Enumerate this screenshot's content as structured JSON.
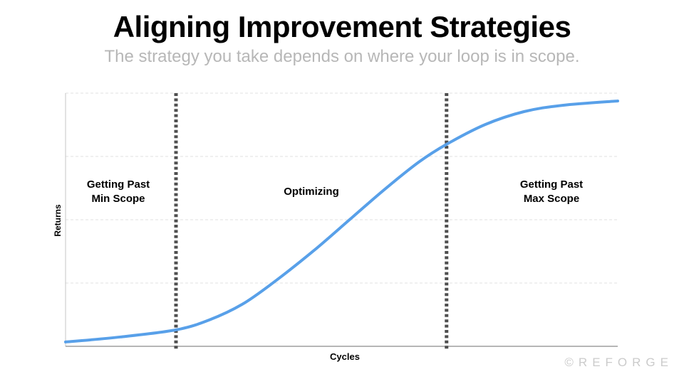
{
  "slide": {
    "title": "Aligning Improvement Strategies",
    "subtitle": "The strategy you take depends on where your loop is in scope.",
    "brand": "©REFORGE"
  },
  "chart_data": {
    "type": "line",
    "title": "Aligning Improvement Strategies",
    "xlabel": "Cycles",
    "ylabel": "Returns",
    "x": [
      0,
      10,
      20,
      26,
      32,
      38,
      45,
      52,
      58,
      64,
      69,
      76,
      83,
      90,
      100
    ],
    "y": [
      1.7,
      3.7,
      6.5,
      10.4,
      16.6,
      25.8,
      37.9,
      51.1,
      62.4,
      72.8,
      79.8,
      87.6,
      92.7,
      95.2,
      96.9
    ],
    "xlim": [
      0,
      100
    ],
    "ylim": [
      0,
      100
    ],
    "tick_labels_visible": false,
    "legend": "none",
    "grid": {
      "horizontal": true,
      "values": [
        25,
        50,
        75,
        100
      ],
      "style": "dashed",
      "color": "#e0e0e0"
    },
    "line_color": "#58a0e9",
    "line_width": 4,
    "axis_color_left": "#c4c4c4",
    "axis_color_bottom": "#9e9e9e",
    "dividers": {
      "x": [
        20,
        69
      ],
      "style": "dotted",
      "color": "#4f4f4f",
      "width": 5
    },
    "regions": [
      {
        "label": "Getting Past\nMin Scope",
        "x_range": [
          0,
          20
        ]
      },
      {
        "label": "Optimizing",
        "x_range": [
          20,
          69
        ]
      },
      {
        "label": "Getting Past\nMax Scope",
        "x_range": [
          69,
          100
        ]
      }
    ]
  }
}
